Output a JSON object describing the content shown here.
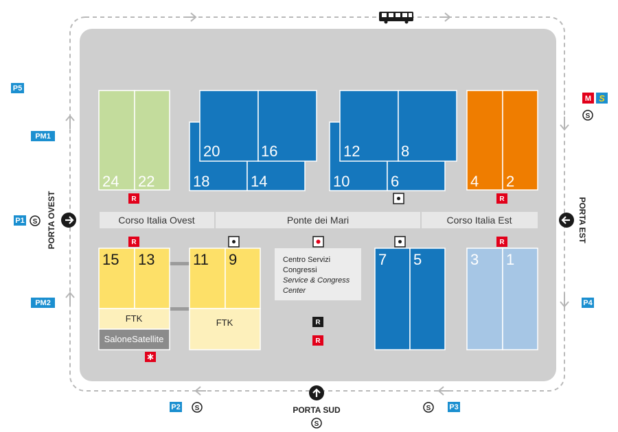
{
  "colors": {
    "ground": "#cfcfcf",
    "green": "#c3dc9c",
    "blue": "#1577bd",
    "orange": "#ef7d00",
    "yellow": "#fde068",
    "light_yellow": "#fdf0bb",
    "light_blue": "#a6c6e5",
    "street": "#e7e7e7",
    "center": "#ececec",
    "parking": "#1b8fd0",
    "red": "#e2001a",
    "dark": "#1a1a1a",
    "grey_block": "#8b8b8b"
  },
  "halls": {
    "h24": "24",
    "h22": "22",
    "h20": "20",
    "h16": "16",
    "h18": "18",
    "h14": "14",
    "h12": "12",
    "h8": "8",
    "h10": "10",
    "h6": "6",
    "h4": "4",
    "h2": "2",
    "h15": "15",
    "h13": "13",
    "h11": "11",
    "h9": "9",
    "h7": "7",
    "h5": "5",
    "h3": "3",
    "h1": "1"
  },
  "streets": {
    "ovest": "Corso Italia Ovest",
    "ponte": "Ponte dei Mari",
    "est": "Corso Italia Est"
  },
  "ftk": {
    "left": "FTK",
    "right": "FTK"
  },
  "salone_satellite": "SaloneSatellite",
  "service_center": {
    "line1": "Centro Servizi",
    "line2": "Congressi",
    "line3": "Service & Congress",
    "line4": "Center"
  },
  "gates": {
    "ovest": "PORTA OVEST",
    "est": "PORTA EST",
    "sud": "PORTA SUD"
  },
  "parking": {
    "p5": "P5",
    "pm1": "PM1",
    "p1": "P1",
    "pm2": "PM2",
    "p2": "P2",
    "p3": "P3",
    "p4": "P4"
  },
  "badges": {
    "restaurant": "R",
    "metro": "M",
    "suburban": "S",
    "shuttle_stop": "S"
  }
}
